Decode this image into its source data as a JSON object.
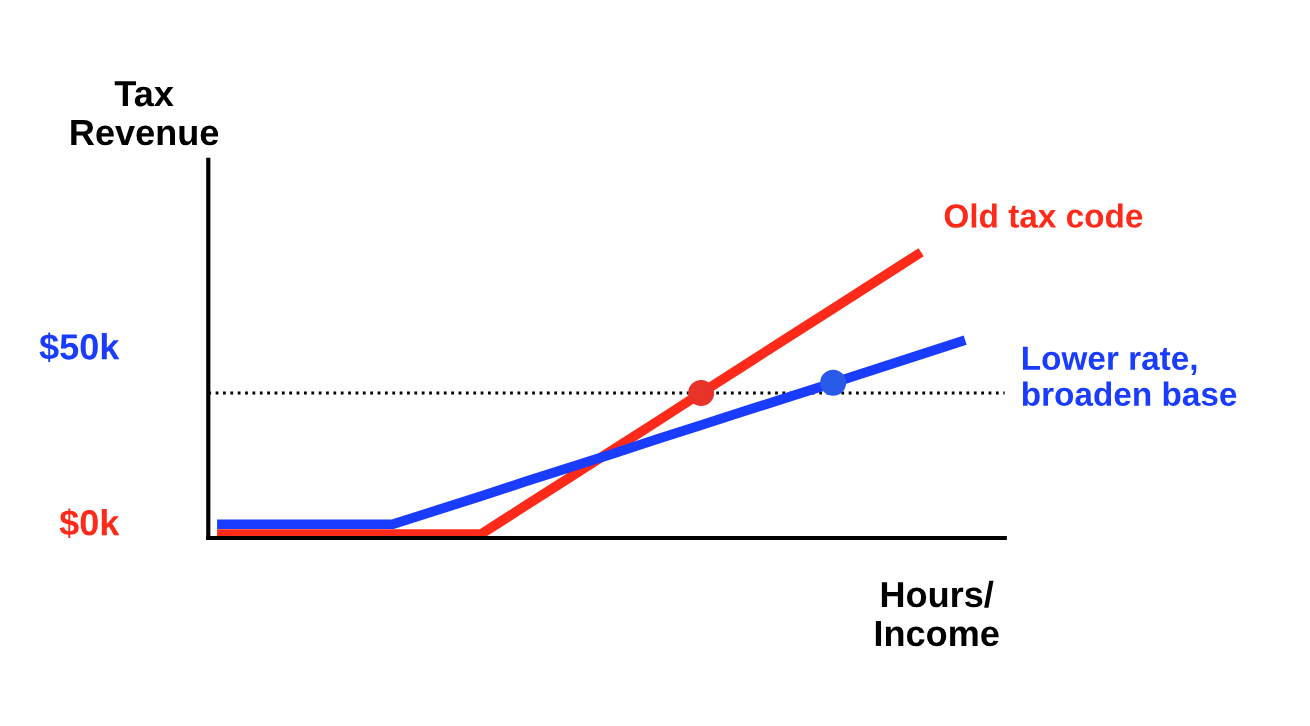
{
  "chart_data": {
    "type": "line",
    "ylabel": "Tax\nRevenue",
    "xlabel": "Hours/\nIncome",
    "categories": [
      null,
      null,
      null,
      null,
      null,
      null,
      null,
      null,
      null,
      null,
      null,
      null,
      null,
      null,
      null,
      null,
      null,
      null
    ],
    "ylim": [
      -4.5,
      103
    ],
    "yticks": [
      {
        "value": 0,
        "label": "$0k"
      },
      {
        "value": 50,
        "label": "$50k"
      }
    ],
    "tick_labels": "y",
    "grid": false,
    "series": [
      {
        "name": "Old tax code",
        "color": "#ff2a1a",
        "values": [
          -3.4,
          -3.4,
          -3.4,
          -3.4,
          -3.4,
          -3.4,
          -3.4,
          4.6,
          12.6,
          20.6,
          28.6,
          36.7,
          44.7,
          52.7,
          60.7,
          68.7,
          76.7,
          null
        ]
      },
      {
        "name": "Lower rate,\nbroaden base",
        "color": "#1a3cff",
        "values": [
          -0.6,
          -0.6,
          -0.6,
          -0.6,
          -0.6,
          3.4,
          7.4,
          11.5,
          15.5,
          19.5,
          23.6,
          27.6,
          31.6,
          35.6,
          39.6,
          43.6,
          47.7,
          51.7
        ]
      },
      {
        "type": "scatter",
        "marker": "circle",
        "color": "#e8332a",
        "values": [
          null,
          null,
          null,
          null,
          null,
          null,
          null,
          null,
          null,
          null,
          null,
          36.7,
          null,
          null,
          null,
          null,
          null,
          null
        ]
      },
      {
        "type": "scatter",
        "marker": "circle",
        "color": "#2a5ae8",
        "values": [
          null,
          null,
          null,
          null,
          null,
          null,
          null,
          null,
          null,
          null,
          null,
          null,
          null,
          null,
          39.6,
          null,
          null,
          null
        ]
      }
    ],
    "ref_lines": [
      {
        "axis": "y",
        "value": 36.7,
        "color": "#000000",
        "line_style": "dotted"
      }
    ]
  }
}
